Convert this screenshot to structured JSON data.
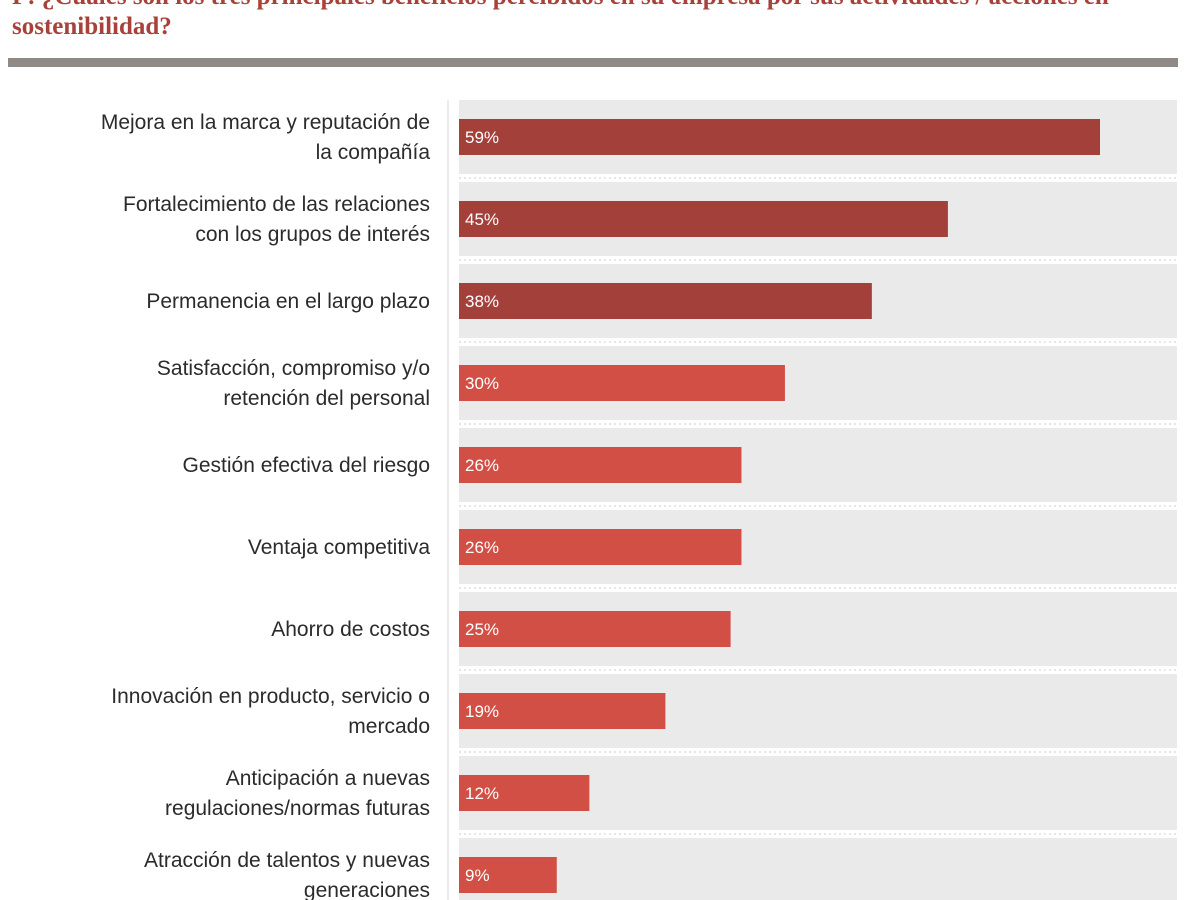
{
  "title": "P: ¿Cuáles son los tres principales beneficios percibidos en su empresa por sus actividades / acciones en sostenibilidad?",
  "chart_data": {
    "type": "bar",
    "orientation": "horizontal",
    "categories": [
      [
        "Mejora en la marca y reputación de",
        "la compañía"
      ],
      [
        "Fortalecimiento de las relaciones",
        "con los grupos de interés"
      ],
      [
        "Permanencia en el largo plazo"
      ],
      [
        "Satisfacción, compromiso y/o",
        "retención del personal"
      ],
      [
        "Gestión efectiva del riesgo"
      ],
      [
        "Ventaja competitiva"
      ],
      [
        "Ahorro de costos"
      ],
      [
        "Innovación en producto, servicio o",
        "mercado"
      ],
      [
        "Anticipación a nuevas",
        "regulaciones/normas futuras"
      ],
      [
        "Atracción de talentos y nuevas",
        "generaciones"
      ]
    ],
    "values": [
      59,
      45,
      38,
      30,
      26,
      26,
      25,
      19,
      12,
      9
    ],
    "value_labels": [
      "59%",
      "45%",
      "38%",
      "30%",
      "26%",
      "26%",
      "25%",
      "19%",
      "12%",
      "9%"
    ],
    "xlim": [
      0,
      65
    ],
    "grid": false,
    "colors": {
      "top3": "#a3403a",
      "rest": "#d24f46",
      "track": "#ebeaea",
      "title": "#a8413a",
      "rule": "#8f8a86"
    }
  }
}
